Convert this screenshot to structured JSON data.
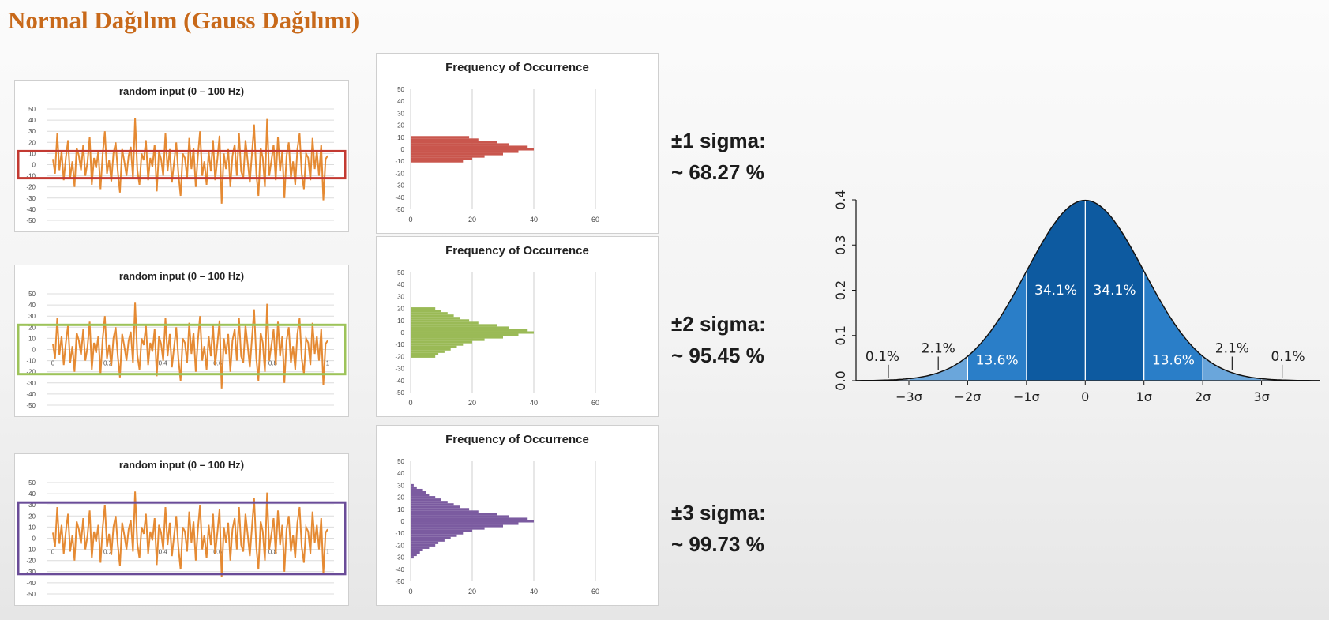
{
  "slide": {
    "title": "Normal Dağılım (Gauss Dağılımı)"
  },
  "colors": {
    "signal": "#e58a33",
    "band1": "#c33a32",
    "band2": "#9dc35a",
    "band3": "#6a4c98",
    "hist1": "#c9564d",
    "hist2": "#9aba56",
    "hist3": "#7b5ba0",
    "gauss_dark": "#0d5aa0",
    "gauss_mid": "#2a7ec8",
    "gauss_light": "#6aa6db",
    "gauss_faint": "#a9c8e8"
  },
  "rows": [
    {
      "time_chart": {
        "title": "random input (0 – 100 Hz)",
        "y_ticks": [
          "50",
          "40",
          "30",
          "20",
          "10",
          "0",
          "-10",
          "-20",
          "-30",
          "-40",
          "-50"
        ],
        "x_ticks": []
      },
      "histogram": {
        "title": "Frequency of Occurrence",
        "y_ticks": [
          "50",
          "40",
          "30",
          "20",
          "10",
          "0",
          "-10",
          "-20",
          "-30",
          "-40",
          "-50"
        ],
        "x_ticks": [
          "0",
          "20",
          "40",
          "60"
        ],
        "band_limit": 10
      },
      "label": {
        "line1": "±1 sigma:",
        "line2": "~ 68.27 %"
      }
    },
    {
      "time_chart": {
        "title": "random input (0 – 100 Hz)",
        "y_ticks": [
          "50",
          "40",
          "30",
          "20",
          "10",
          "0",
          "-10",
          "-20",
          "-30",
          "-40",
          "-50"
        ],
        "x_ticks": [
          "0",
          "0.2",
          "0.4",
          "0.6",
          "0.8",
          "1"
        ]
      },
      "histogram": {
        "title": "Frequency of Occurrence",
        "y_ticks": [
          "50",
          "40",
          "30",
          "20",
          "10",
          "0",
          "-10",
          "-20",
          "-30",
          "-40",
          "-50"
        ],
        "x_ticks": [
          "0",
          "20",
          "40",
          "60"
        ],
        "band_limit": 20
      },
      "label": {
        "line1": "±2 sigma:",
        "line2": "~ 95.45 %"
      }
    },
    {
      "time_chart": {
        "title": "random input (0 – 100 Hz)",
        "y_ticks": [
          "50",
          "40",
          "30",
          "20",
          "10",
          "0",
          "-10",
          "-20",
          "-30",
          "-40",
          "-50"
        ],
        "x_ticks": [
          "0",
          "0.2",
          "0.4",
          "0.6",
          "0.8",
          "1"
        ]
      },
      "histogram": {
        "title": "Frequency of Occurrence",
        "y_ticks": [
          "50",
          "40",
          "30",
          "20",
          "10",
          "0",
          "-10",
          "-20",
          "-30",
          "-40",
          "-50"
        ],
        "x_ticks": [
          "0",
          "20",
          "40",
          "60"
        ],
        "band_limit": 30
      },
      "label": {
        "line1": "±3 sigma:",
        "line2": "~ 99.73 %"
      }
    }
  ],
  "chart_data": [
    {
      "type": "line",
      "title": "random input (0 – 100 Hz)",
      "ylim": [
        -50,
        50
      ],
      "xlim": [
        0,
        1
      ],
      "y": [
        5,
        -8,
        28,
        -5,
        12,
        -14,
        6,
        22,
        -12,
        3,
        -20,
        15,
        8,
        -5,
        18,
        -10,
        2,
        25,
        -18,
        6,
        -3,
        12,
        -22,
        9,
        30,
        -8,
        4,
        -15,
        10,
        20,
        -6,
        -25,
        14,
        3,
        -10,
        8,
        16,
        -12,
        42,
        -5,
        -18,
        10,
        4,
        22,
        -14,
        6,
        -2,
        18,
        -24,
        12,
        5,
        -10,
        28,
        -6,
        14,
        -16,
        2,
        20,
        -8,
        -28,
        10,
        6,
        -12,
        24,
        -4,
        15,
        -20,
        8,
        30,
        -10,
        3,
        -18,
        12,
        -6,
        22,
        -14,
        5,
        26,
        -35,
        10,
        -4,
        14,
        -20,
        8,
        18,
        -10,
        28,
        -6,
        -12,
        22,
        4,
        -16,
        10,
        36,
        -8,
        -28,
        15,
        6,
        -20,
        41,
        -10,
        4,
        18,
        -14,
        25,
        -6,
        12,
        -30,
        8,
        20,
        -12,
        3,
        -18,
        14,
        28,
        -8,
        -22,
        10,
        6,
        -14,
        24,
        -4,
        12,
        -10,
        18,
        -32,
        5,
        8
      ]
    },
    {
      "type": "bar",
      "title": "Frequency of Occurrence",
      "orientation": "horizontal",
      "y": [
        -30,
        -28,
        -26,
        -24,
        -22,
        -20,
        -18,
        -16,
        -14,
        -12,
        -10,
        -8,
        -6,
        -4,
        -2,
        0,
        2,
        4,
        6,
        8,
        10,
        12,
        14,
        16,
        18,
        20,
        22,
        24,
        26,
        28,
        30
      ],
      "counts": [
        1,
        2,
        3,
        4,
        6,
        8,
        9,
        11,
        13,
        15,
        17,
        20,
        24,
        30,
        35,
        40,
        38,
        32,
        28,
        22,
        19,
        16,
        14,
        12,
        10,
        8,
        6,
        5,
        4,
        2,
        1
      ],
      "xlim": [
        0,
        60
      ],
      "ylim": [
        -50,
        50
      ]
    },
    {
      "type": "area",
      "ylim": [
        0,
        0.4
      ],
      "y_ticks": [
        "0.0",
        "0.1",
        "0.2",
        "0.3",
        "0.4"
      ],
      "x_ticks": [
        "−3σ",
        "−2σ",
        "−1σ",
        "0",
        "1σ",
        "2σ",
        "3σ"
      ],
      "xlim": [
        -3.9,
        4.0
      ],
      "regions": [
        {
          "from": 0,
          "to": 1,
          "pct": "34.1%"
        },
        {
          "from": -1,
          "to": 0,
          "pct": "34.1%"
        },
        {
          "from": 1,
          "to": 2,
          "pct": "13.6%"
        },
        {
          "from": -2,
          "to": -1,
          "pct": "13.6%"
        },
        {
          "from": 2,
          "to": 3,
          "pct": "2.1%"
        },
        {
          "from": -3,
          "to": -2,
          "pct": "2.1%"
        },
        {
          "from": 3,
          "to": 4,
          "pct": "0.1%"
        },
        {
          "from": -4,
          "to": -3,
          "pct": "0.1%"
        }
      ]
    }
  ]
}
